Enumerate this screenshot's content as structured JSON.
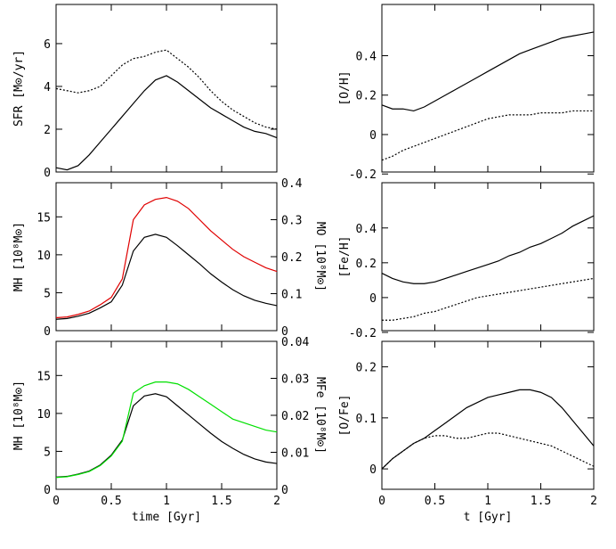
{
  "chart_data": [
    {
      "type": "line",
      "ylabel": "SFR [M⊙/yr]",
      "x": [
        0,
        0.1,
        0.2,
        0.3,
        0.4,
        0.5,
        0.6,
        0.7,
        0.8,
        0.9,
        1,
        1.1,
        1.2,
        1.3,
        1.4,
        1.5,
        1.6,
        1.7,
        1.8,
        1.9,
        2
      ],
      "xlim": [
        0,
        2
      ],
      "xticks": [
        0,
        0.5,
        1,
        1.5,
        2
      ],
      "show_xticklabels": false,
      "ylim": [
        0,
        7.83
      ],
      "yticks": [
        0,
        2,
        4,
        6
      ],
      "series": [
        {
          "color": "#000000",
          "style": "solid",
          "values": [
            0.2,
            0.1,
            0.3,
            0.8,
            1.4,
            2.0,
            2.6,
            3.2,
            3.8,
            4.3,
            4.5,
            4.2,
            3.8,
            3.4,
            3.0,
            2.7,
            2.4,
            2.1,
            1.9,
            1.8,
            1.6
          ]
        },
        {
          "color": "#000000",
          "style": "dotted",
          "values": [
            3.9,
            3.8,
            3.7,
            3.8,
            4.0,
            4.5,
            5.0,
            5.3,
            5.4,
            5.6,
            5.7,
            5.3,
            4.9,
            4.4,
            3.8,
            3.3,
            2.9,
            2.6,
            2.3,
            2.1,
            2.0
          ]
        }
      ]
    },
    {
      "type": "line",
      "ylabel": "[O/H]",
      "x": [
        0,
        0.1,
        0.2,
        0.3,
        0.4,
        0.5,
        0.6,
        0.7,
        0.8,
        0.9,
        1,
        1.1,
        1.2,
        1.3,
        1.4,
        1.5,
        1.6,
        1.7,
        1.8,
        1.9,
        2
      ],
      "xlim": [
        0,
        2
      ],
      "xticks": [
        0,
        0.5,
        1,
        1.5,
        2
      ],
      "show_xticklabels": false,
      "ylim": [
        -0.19,
        0.66
      ],
      "yticks": [
        -0.2,
        0,
        0.2,
        0.4
      ],
      "series": [
        {
          "color": "#000000",
          "style": "solid",
          "values": [
            0.15,
            0.13,
            0.13,
            0.12,
            0.14,
            0.17,
            0.2,
            0.23,
            0.26,
            0.29,
            0.32,
            0.35,
            0.38,
            0.41,
            0.43,
            0.45,
            0.47,
            0.49,
            0.5,
            0.51,
            0.52
          ]
        },
        {
          "color": "#000000",
          "style": "dotted",
          "values": [
            -0.13,
            -0.11,
            -0.08,
            -0.06,
            -0.04,
            -0.02,
            0,
            0.02,
            0.04,
            0.06,
            0.08,
            0.09,
            0.1,
            0.1,
            0.1,
            0.11,
            0.11,
            0.11,
            0.12,
            0.12,
            0.12
          ]
        }
      ]
    },
    {
      "type": "line",
      "ylabel": "MH [10⁸M⊙]",
      "y2label": "MO [10⁸M⊙]",
      "x": [
        0,
        0.1,
        0.2,
        0.3,
        0.4,
        0.5,
        0.6,
        0.7,
        0.8,
        0.9,
        1,
        1.1,
        1.2,
        1.3,
        1.4,
        1.5,
        1.6,
        1.7,
        1.8,
        1.9,
        2
      ],
      "xlim": [
        0,
        2
      ],
      "xticks": [
        0,
        0.5,
        1,
        1.5,
        2
      ],
      "show_xticklabels": false,
      "ylim": [
        0,
        19.5
      ],
      "yticks": [
        0,
        5,
        10,
        15
      ],
      "y2lim": [
        0,
        0.4
      ],
      "y2ticks": [
        0,
        0.1,
        0.2,
        0.3,
        0.4
      ],
      "series": [
        {
          "color": "#000000",
          "style": "solid",
          "values": [
            1.5,
            1.6,
            1.9,
            2.3,
            3.0,
            3.8,
            6.0,
            10.5,
            12.3,
            12.7,
            12.3,
            11.2,
            10.0,
            8.8,
            7.5,
            6.4,
            5.4,
            4.6,
            4.0,
            3.6,
            3.3
          ]
        },
        {
          "color": "#e00000",
          "style": "solid",
          "axis": "y2",
          "values": [
            0.035,
            0.037,
            0.044,
            0.053,
            0.07,
            0.09,
            0.14,
            0.3,
            0.34,
            0.355,
            0.36,
            0.35,
            0.33,
            0.3,
            0.27,
            0.245,
            0.22,
            0.2,
            0.185,
            0.17,
            0.16
          ]
        }
      ]
    },
    {
      "type": "line",
      "ylabel": "[Fe/H]",
      "x": [
        0,
        0.1,
        0.2,
        0.3,
        0.4,
        0.5,
        0.6,
        0.7,
        0.8,
        0.9,
        1,
        1.1,
        1.2,
        1.3,
        1.4,
        1.5,
        1.6,
        1.7,
        1.8,
        1.9,
        2
      ],
      "xlim": [
        0,
        2
      ],
      "xticks": [
        0,
        0.5,
        1,
        1.5,
        2
      ],
      "show_xticklabels": false,
      "ylim": [
        -0.19,
        0.66
      ],
      "yticks": [
        -0.2,
        0,
        0.2,
        0.4
      ],
      "series": [
        {
          "color": "#000000",
          "style": "solid",
          "values": [
            0.14,
            0.11,
            0.09,
            0.08,
            0.08,
            0.09,
            0.11,
            0.13,
            0.15,
            0.17,
            0.19,
            0.21,
            0.24,
            0.26,
            0.29,
            0.31,
            0.34,
            0.37,
            0.41,
            0.44,
            0.47
          ]
        },
        {
          "color": "#000000",
          "style": "dotted",
          "values": [
            -0.13,
            -0.13,
            -0.12,
            -0.11,
            -0.09,
            -0.08,
            -0.06,
            -0.04,
            -0.02,
            0,
            0.01,
            0.02,
            0.03,
            0.04,
            0.05,
            0.06,
            0.07,
            0.08,
            0.09,
            0.1,
            0.11
          ]
        }
      ]
    },
    {
      "type": "line",
      "ylabel": "MH [10⁸M⊙]",
      "y2label": "MFe [10⁸M⊙]",
      "xlabel": "time [Gyr]",
      "x": [
        0,
        0.1,
        0.2,
        0.3,
        0.4,
        0.5,
        0.6,
        0.7,
        0.8,
        0.9,
        1,
        1.1,
        1.2,
        1.3,
        1.4,
        1.5,
        1.6,
        1.7,
        1.8,
        1.9,
        2
      ],
      "xlim": [
        0,
        2
      ],
      "xticks": [
        0,
        0.5,
        1,
        1.5,
        2
      ],
      "show_xticklabels": true,
      "ylim": [
        0,
        19.5
      ],
      "yticks": [
        0,
        5,
        10,
        15
      ],
      "y2lim": [
        0,
        0.04
      ],
      "y2ticks": [
        0,
        0.01,
        0.02,
        0.03,
        0.04
      ],
      "series": [
        {
          "color": "#000000",
          "style": "solid",
          "values": [
            1.6,
            1.7,
            2.0,
            2.4,
            3.2,
            4.5,
            6.5,
            11.0,
            12.3,
            12.6,
            12.2,
            11.0,
            9.8,
            8.6,
            7.4,
            6.3,
            5.4,
            4.6,
            4.0,
            3.6,
            3.4
          ]
        },
        {
          "color": "#00e000",
          "style": "solid",
          "axis": "y2",
          "values": [
            0.0032,
            0.0034,
            0.004,
            0.0048,
            0.0064,
            0.009,
            0.013,
            0.026,
            0.028,
            0.029,
            0.029,
            0.0285,
            0.027,
            0.025,
            0.023,
            0.021,
            0.019,
            0.018,
            0.017,
            0.016,
            0.0155
          ]
        }
      ]
    },
    {
      "type": "line",
      "ylabel": "[O/Fe]",
      "xlabel": "t [Gyr]",
      "x": [
        0,
        0.1,
        0.2,
        0.3,
        0.4,
        0.5,
        0.6,
        0.7,
        0.8,
        0.9,
        1,
        1.1,
        1.2,
        1.3,
        1.4,
        1.5,
        1.6,
        1.7,
        1.8,
        1.9,
        2
      ],
      "xlim": [
        0,
        2
      ],
      "xticks": [
        0,
        0.5,
        1,
        1.5,
        2
      ],
      "show_xticklabels": true,
      "ylim": [
        -0.04,
        0.25
      ],
      "yticks": [
        0,
        0.1,
        0.2
      ],
      "series": [
        {
          "color": "#000000",
          "style": "solid",
          "values": [
            0,
            0.02,
            0.035,
            0.05,
            0.06,
            0.075,
            0.09,
            0.105,
            0.12,
            0.13,
            0.14,
            0.145,
            0.15,
            0.155,
            0.155,
            0.15,
            0.14,
            0.12,
            0.095,
            0.07,
            0.045
          ]
        },
        {
          "color": "#000000",
          "style": "dotted",
          "values": [
            0,
            0.02,
            0.035,
            0.05,
            0.06,
            0.065,
            0.065,
            0.06,
            0.06,
            0.065,
            0.07,
            0.07,
            0.065,
            0.06,
            0.055,
            0.05,
            0.045,
            0.035,
            0.025,
            0.015,
            0.005
          ]
        }
      ]
    }
  ]
}
